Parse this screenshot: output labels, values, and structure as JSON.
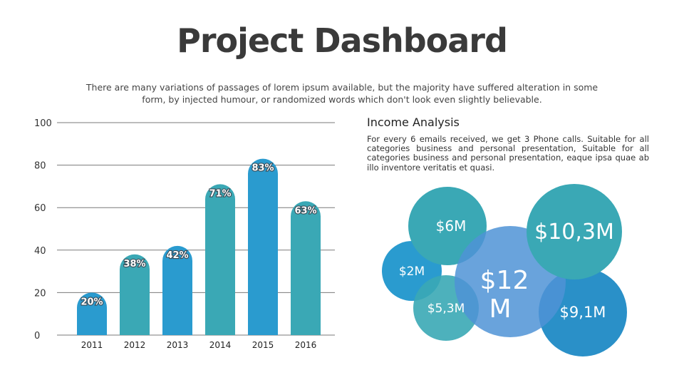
{
  "header": {
    "title": "Project Dashboard",
    "subtitle": "There are many variations of passages of lorem ipsum available, but the majority have suffered alteration in some form, by injected humour, or randomized words which don't look even slightly believable."
  },
  "income": {
    "heading": "Income Analysis",
    "text": "For every 6 emails received, we get 3 Phone calls. Suitable for all categories business and personal presentation, Suitable for all categories business and personal presentation, eaque ipsa quae ab illo inventore veritatis et quasi."
  },
  "chart_data": {
    "type": "bar",
    "categories": [
      "2011",
      "2012",
      "2013",
      "2014",
      "2015",
      "2016"
    ],
    "values": [
      20,
      38,
      42,
      71,
      83,
      63
    ],
    "data_labels": [
      "20%",
      "38%",
      "42%",
      "71%",
      "83%",
      "63%"
    ],
    "yticks": [
      0,
      20,
      40,
      60,
      80,
      100
    ],
    "ylim": [
      0,
      100
    ],
    "grid": true,
    "colors": [
      "#2a9bcf",
      "#3aa8b5",
      "#2a9bcf",
      "#3aa8b5",
      "#2a9bcf",
      "#3aa8b5"
    ]
  },
  "bubbles": [
    {
      "label": "$6M",
      "color": "#3aa8b5",
      "opacity": 1
    },
    {
      "label": "$2M",
      "color": "#2a9bcf",
      "opacity": 1
    },
    {
      "label": "$5,3M",
      "color": "#3aa8b5",
      "opacity": 0.9
    },
    {
      "label": "$12 M",
      "color": "#4f93d6",
      "opacity": 0.85
    },
    {
      "label": "$9,1M",
      "color": "#2a90c8",
      "opacity": 1
    },
    {
      "label": "$10,3M",
      "color": "#3aa8b5",
      "opacity": 1
    }
  ]
}
